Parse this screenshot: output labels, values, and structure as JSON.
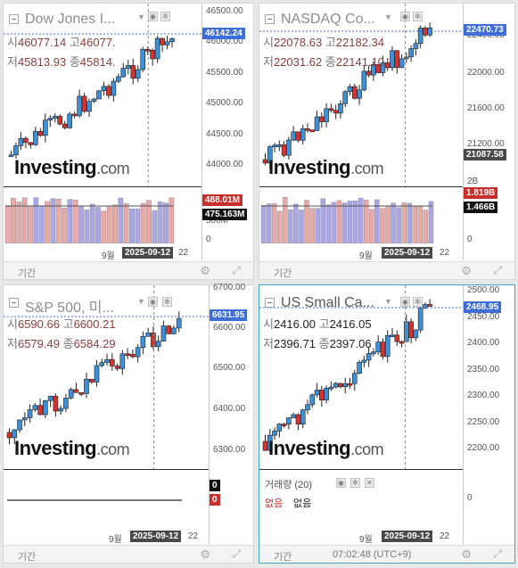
{
  "panels": [
    {
      "title": "Dow Jones I...",
      "open_lbl": "시",
      "high_lbl": "고",
      "low_lbl": "저",
      "close_lbl": "종",
      "open": "46077.14",
      "high": "46077.",
      "low": "45813.93",
      "close": "45814.",
      "price_ticks": [
        "46500.00",
        "46000.00",
        "45500.00",
        "45000.00",
        "44500.00",
        "44000.00"
      ],
      "last_price": "46142.24",
      "vol_ticks": [
        "500M",
        "0"
      ],
      "vol_tag1": "488.01M",
      "vol_tag2": "475.163M",
      "x_month": "9월",
      "x_date": "2025-09-12",
      "x_next": "22",
      "footer": "기간"
    },
    {
      "title": "NASDAQ Co...",
      "open_lbl": "시",
      "high_lbl": "고",
      "low_lbl": "저",
      "close_lbl": "종",
      "open": "22078.63",
      "high": "22182.34",
      "low": "22031.62",
      "close": "22141.10",
      "price_ticks": [
        "22400.00",
        "22000.00",
        "21600.00",
        "21200.00"
      ],
      "last_price": "22470.73",
      "extra_price": "21087.58",
      "vol_ticks": [
        "2B",
        "1B",
        "0"
      ],
      "vol_tag1": "1.819B",
      "vol_tag2": "1.466B",
      "x_month": "9월",
      "x_date": "2025-09-12",
      "x_next": "22",
      "footer": "기간"
    },
    {
      "title": "S&P 500, 미...",
      "open_lbl": "시",
      "high_lbl": "고",
      "low_lbl": "저",
      "close_lbl": "종",
      "open": "6590.66",
      "high": "6600.21",
      "low": "6579.49",
      "close": "6584.29",
      "price_ticks": [
        "6700.00",
        "6600.00",
        "6500.00",
        "6400.00",
        "6300.00"
      ],
      "last_price": "6631.95",
      "vol_tag1": "0",
      "vol_tag2": "0",
      "x_month": "9월",
      "x_date": "2025-09-12",
      "x_next": "22",
      "footer": "기간"
    },
    {
      "title": "US Small Ca...",
      "open_lbl": "시",
      "high_lbl": "고",
      "low_lbl": "저",
      "close_lbl": "종",
      "open": "2416.00",
      "high": "2416.05",
      "low": "2396.71",
      "close": "2397.06",
      "price_ticks": [
        "2500.00",
        "2450.00",
        "2400.00",
        "2350.00",
        "2300.00",
        "2250.00",
        "2200.00"
      ],
      "last_price": "2468.95",
      "vol_ticks": [
        "0"
      ],
      "indicator_title": "거래량 (20)",
      "indicator_none1": "없음",
      "indicator_none2": "없음",
      "x_month": "9월",
      "x_date": "2025-09-12",
      "x_next": "22",
      "footer": "기간",
      "time": "07:02:48 (UTC+9)"
    }
  ],
  "logo": {
    "main": "Investing",
    "suffix": ".com"
  },
  "colors": {
    "up": "#3d8fd6",
    "down": "#d9322e",
    "accent_price": "#3f6ed8",
    "red_tag": "#c8302c",
    "black_tag": "#111111"
  },
  "icons": [
    "gear-icon",
    "expand-icon",
    "eye-icon",
    "settings-icon",
    "close-icon",
    "collapse-icon"
  ]
}
